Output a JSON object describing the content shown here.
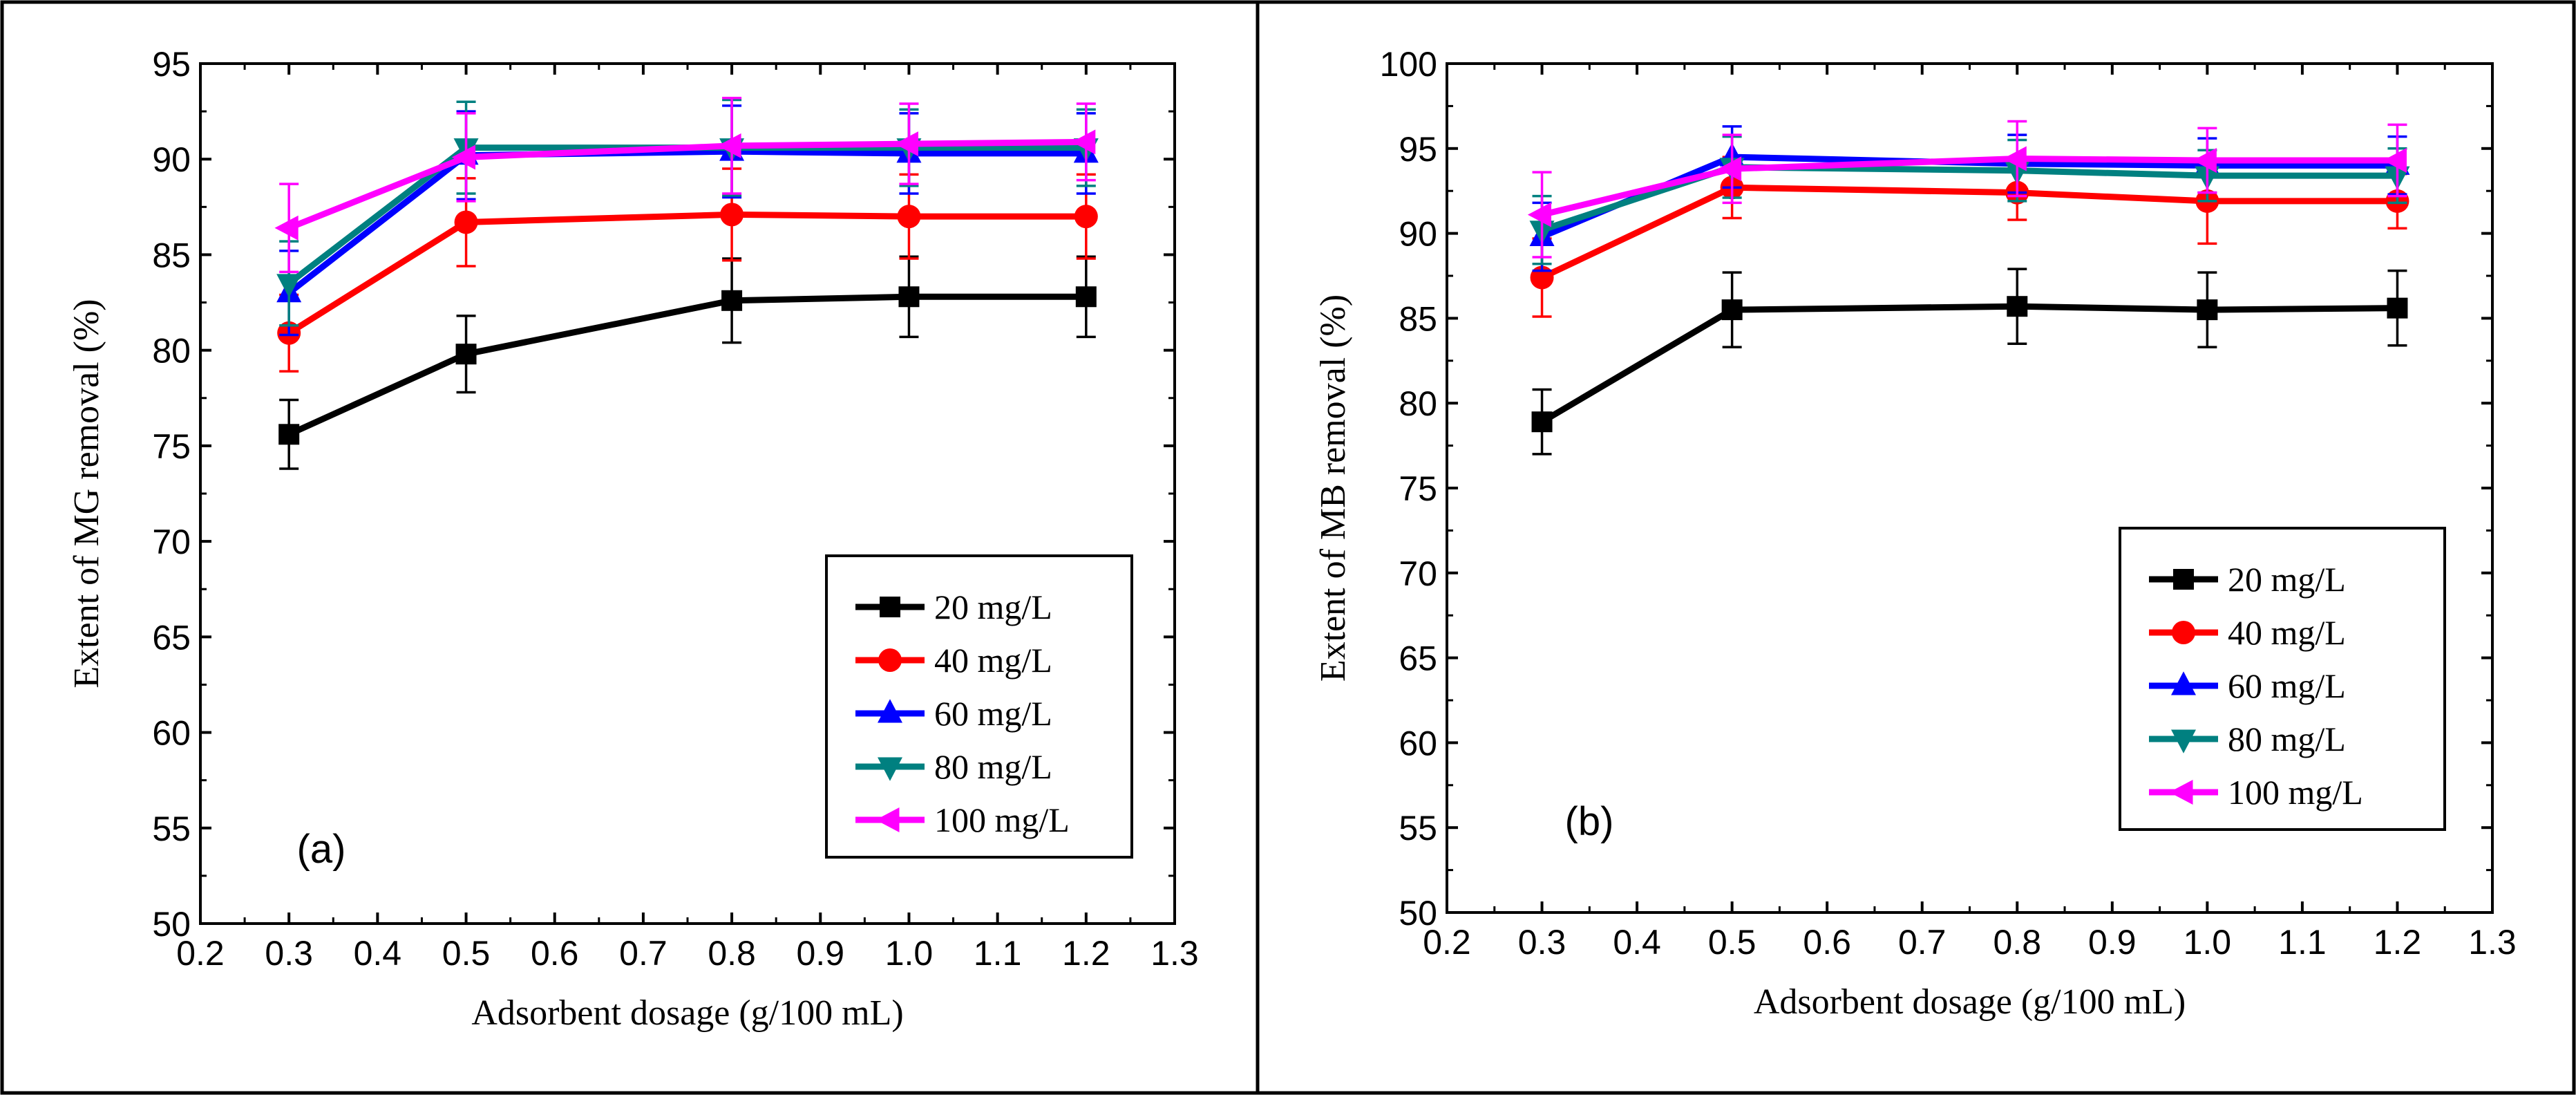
{
  "chart_data": [
    {
      "panel_label": "(a)",
      "type": "line",
      "xlabel": "Adsorbent dosage (g/100 mL)",
      "ylabel": "Extent of MG removal (%)",
      "xlim": [
        0.2,
        1.3
      ],
      "ylim": [
        50,
        95
      ],
      "xticks": [
        "0.2",
        "0.3",
        "0.4",
        "0.5",
        "0.6",
        "0.7",
        "0.8",
        "0.9",
        "1.0",
        "1.1",
        "1.2",
        "1.3"
      ],
      "yticks": [
        "50",
        "55",
        "60",
        "65",
        "70",
        "75",
        "80",
        "85",
        "90",
        "95"
      ],
      "x": [
        0.3,
        0.5,
        0.8,
        1.0,
        1.2
      ],
      "legend_position": "bottom-right",
      "series": [
        {
          "name": "20 mg/L",
          "color": "#000000",
          "marker": "square",
          "values": [
            75.6,
            79.8,
            82.6,
            82.8,
            82.8
          ],
          "error": [
            1.8,
            2.0,
            2.2,
            2.1,
            2.1
          ]
        },
        {
          "name": "40 mg/L",
          "color": "#ff0000",
          "marker": "circle",
          "values": [
            80.9,
            86.7,
            87.1,
            87.0,
            87.0
          ],
          "error": [
            2.0,
            2.3,
            2.4,
            2.2,
            2.2
          ]
        },
        {
          "name": "60 mg/L",
          "color": "#0000ff",
          "marker": "triangle-up",
          "values": [
            83.0,
            90.2,
            90.4,
            90.3,
            90.3
          ],
          "error": [
            2.2,
            2.3,
            2.4,
            2.1,
            2.1
          ]
        },
        {
          "name": "80 mg/L",
          "color": "#008080",
          "marker": "triangle-down",
          "values": [
            83.5,
            90.6,
            90.6,
            90.6,
            90.6
          ],
          "error": [
            2.2,
            2.4,
            2.5,
            2.0,
            2.0
          ]
        },
        {
          "name": "100 mg/L",
          "color": "#ff00ff",
          "marker": "triangle-left",
          "values": [
            86.4,
            90.1,
            90.7,
            90.8,
            90.9
          ],
          "error": [
            2.3,
            2.3,
            2.5,
            2.1,
            2.0
          ]
        }
      ]
    },
    {
      "panel_label": "(b)",
      "type": "line",
      "xlabel": "Adsorbent dosage (g/100 mL)",
      "ylabel": "Extent of MB removal (%)",
      "xlim": [
        0.2,
        1.3
      ],
      "ylim": [
        50,
        100
      ],
      "xticks": [
        "0.2",
        "0.3",
        "0.4",
        "0.5",
        "0.6",
        "0.7",
        "0.8",
        "0.9",
        "1.0",
        "1.1",
        "1.2",
        "1.3"
      ],
      "yticks": [
        "50",
        "55",
        "60",
        "65",
        "70",
        "75",
        "80",
        "85",
        "90",
        "95",
        "100"
      ],
      "x": [
        0.3,
        0.5,
        0.8,
        1.0,
        1.2
      ],
      "legend_position": "bottom-right",
      "series": [
        {
          "name": "20 mg/L",
          "color": "#000000",
          "marker": "square",
          "values": [
            78.9,
            85.5,
            85.7,
            85.5,
            85.6
          ],
          "error": [
            1.9,
            2.2,
            2.2,
            2.2,
            2.2
          ]
        },
        {
          "name": "40 mg/L",
          "color": "#ff0000",
          "marker": "circle",
          "values": [
            87.4,
            92.7,
            92.4,
            91.9,
            91.9
          ],
          "error": [
            2.3,
            1.8,
            1.6,
            2.5,
            1.6
          ]
        },
        {
          "name": "60 mg/L",
          "color": "#0000ff",
          "marker": "triangle-up",
          "values": [
            89.8,
            94.5,
            94.1,
            94.0,
            94.0
          ],
          "error": [
            2.0,
            1.8,
            1.7,
            1.6,
            1.7
          ]
        },
        {
          "name": "80 mg/L",
          "color": "#008080",
          "marker": "triangle-down",
          "values": [
            90.2,
            93.9,
            93.7,
            93.4,
            93.4
          ],
          "error": [
            2.0,
            1.8,
            1.8,
            1.5,
            1.6
          ]
        },
        {
          "name": "100 mg/L",
          "color": "#ff00ff",
          "marker": "triangle-left",
          "values": [
            91.1,
            93.8,
            94.4,
            94.3,
            94.3
          ],
          "error": [
            2.5,
            2.0,
            2.2,
            1.9,
            2.1
          ]
        }
      ]
    }
  ]
}
